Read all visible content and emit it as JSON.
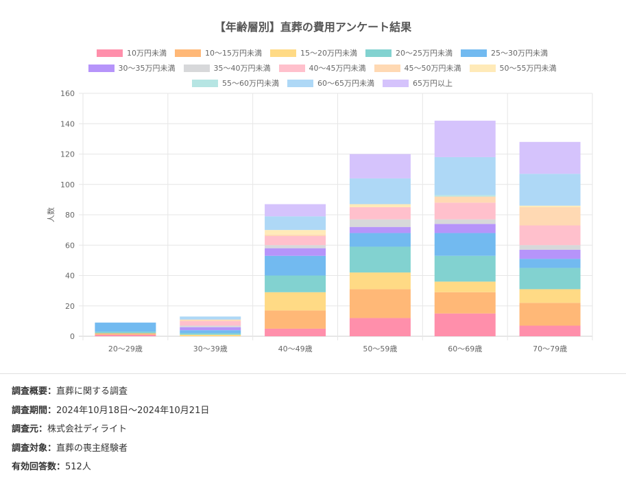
{
  "chart_data": {
    "type": "bar",
    "stacked": true,
    "title": "【年齢層別】直葬の費用アンケート結果",
    "xlabel": "",
    "ylabel": "人数",
    "ylim": [
      0,
      160
    ],
    "yticks": [
      0,
      20,
      40,
      60,
      80,
      100,
      120,
      140,
      160
    ],
    "grid": true,
    "legend_position": "top",
    "categories": [
      "20～29歳",
      "30～39歳",
      "40～49歳",
      "50～59歳",
      "60～69歳",
      "70～79歳"
    ],
    "series": [
      {
        "name": "10万円未満",
        "color": "#ff8fab",
        "values": [
          1,
          0,
          5,
          12,
          15,
          7
        ]
      },
      {
        "name": "10～15万円未満",
        "color": "#ffb877",
        "values": [
          1,
          0,
          12,
          19,
          14,
          15
        ]
      },
      {
        "name": "15～20万円未満",
        "color": "#ffda85",
        "values": [
          0,
          1,
          12,
          11,
          7,
          9
        ]
      },
      {
        "name": "20～25万円未満",
        "color": "#82d2d0",
        "values": [
          1,
          1,
          11,
          17,
          17,
          14
        ]
      },
      {
        "name": "25～30万円未満",
        "color": "#72baf0",
        "values": [
          6,
          2,
          13,
          9,
          15,
          6
        ]
      },
      {
        "name": "30～35万円未満",
        "color": "#b694fa",
        "values": [
          0,
          2,
          5,
          4,
          6,
          6
        ]
      },
      {
        "name": "35～40万円未満",
        "color": "#d7d8da",
        "values": [
          0,
          1,
          2,
          5,
          3,
          3
        ]
      },
      {
        "name": "40～45万円未満",
        "color": "#ffc0cc",
        "values": [
          0,
          3,
          6,
          8,
          11,
          13
        ]
      },
      {
        "name": "45～50万円未満",
        "color": "#ffd9b3",
        "values": [
          0,
          1,
          1,
          0,
          4,
          12
        ]
      },
      {
        "name": "50～55万円未満",
        "color": "#ffeab8",
        "values": [
          0,
          0,
          3,
          2,
          0,
          1
        ]
      },
      {
        "name": "55～60万円未満",
        "color": "#b6e5e3",
        "values": [
          0,
          0,
          0,
          0,
          1,
          0
        ]
      },
      {
        "name": "60～65万円未満",
        "color": "#aed8f6",
        "values": [
          0,
          2,
          9,
          17,
          25,
          21
        ]
      },
      {
        "name": "65万円以上",
        "color": "#d5c3fc",
        "values": [
          0,
          0,
          8,
          16,
          24,
          21
        ]
      }
    ]
  },
  "info": [
    {
      "label": "調査概要：",
      "value": "直葬に関する調査"
    },
    {
      "label": "調査期間：",
      "value": "2024年10月18日～2024年10月21日"
    },
    {
      "label": "調査元：",
      "value": "株式会社ディライト"
    },
    {
      "label": "調査対象：",
      "value": "直葬の喪主経験者"
    },
    {
      "label": "有効回答数：",
      "value": "512人"
    }
  ]
}
